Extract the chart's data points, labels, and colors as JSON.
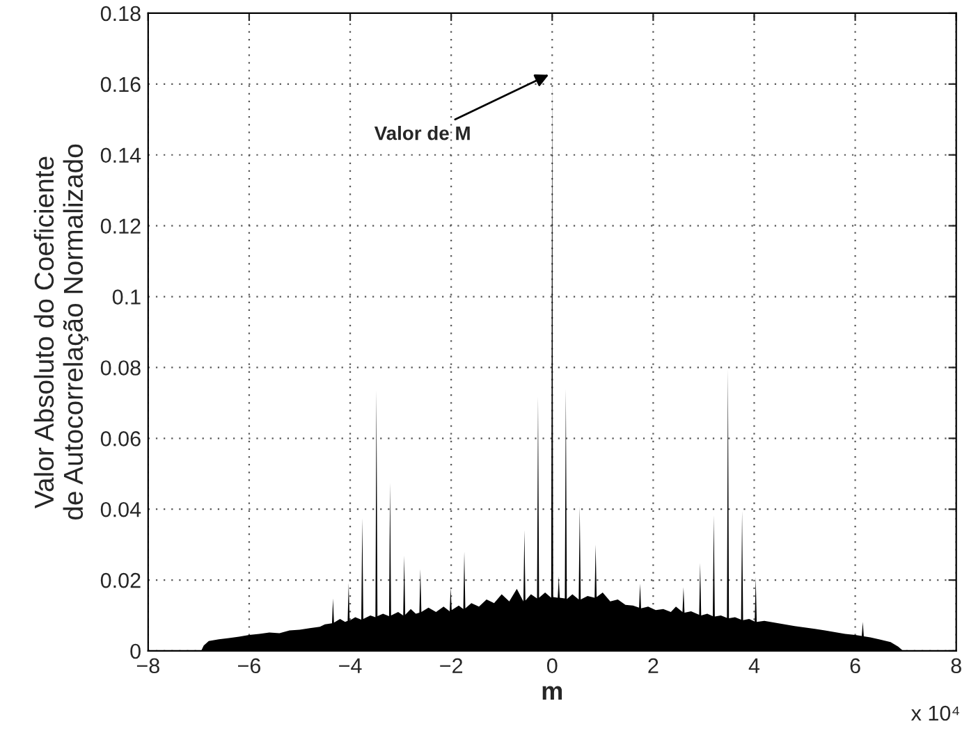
{
  "chart_data": {
    "type": "area",
    "xlabel": "m",
    "ylabel": "Valor Absoluto do Coeficiente\nde Autocorrelação Normalizado",
    "x": [
      -6.95,
      -6.9,
      -6.8,
      -6.6,
      -6.4,
      -6.2,
      -6.0,
      -5.8,
      -5.6,
      -5.4,
      -5.2,
      -5.0,
      -4.8,
      -4.6,
      -4.5,
      -4.36,
      -4.34,
      -4.32,
      -4.2,
      -4.1,
      -4.05,
      -4.03,
      -4.01,
      -3.9,
      -3.78,
      -3.76,
      -3.74,
      -3.6,
      -3.5,
      -3.48,
      -3.46,
      -3.35,
      -3.23,
      -3.21,
      -3.19,
      -3.05,
      -2.95,
      -2.93,
      -2.91,
      -2.8,
      -2.7,
      -2.63,
      -2.61,
      -2.59,
      -2.45,
      -2.3,
      -2.15,
      -2.03,
      -2.01,
      -1.99,
      -1.85,
      -1.76,
      -1.74,
      -1.72,
      -1.6,
      -1.45,
      -1.3,
      -1.15,
      -1.0,
      -0.85,
      -0.7,
      -0.57,
      -0.55,
      -0.53,
      -0.42,
      -0.3,
      -0.28,
      -0.26,
      -0.14,
      -0.02,
      0,
      0.02,
      0.11,
      0.13,
      0.15,
      0.25,
      0.27,
      0.29,
      0.4,
      0.525,
      0.545,
      0.565,
      0.7,
      0.84,
      0.86,
      0.88,
      1.0,
      1.15,
      1.3,
      1.45,
      1.6,
      1.72,
      1.74,
      1.76,
      1.9,
      2.05,
      2.2,
      2.35,
      2.45,
      2.58,
      2.6,
      2.62,
      2.75,
      2.91,
      2.93,
      2.95,
      3.07,
      3.18,
      3.2,
      3.22,
      3.34,
      3.46,
      3.48,
      3.5,
      3.62,
      3.74,
      3.76,
      3.78,
      3.9,
      4.01,
      4.03,
      4.05,
      4.2,
      4.4,
      4.6,
      4.8,
      5.0,
      5.2,
      5.4,
      5.6,
      5.8,
      6.0,
      6.13,
      6.15,
      6.17,
      6.3,
      6.5,
      6.7,
      6.85,
      6.95
    ],
    "values": [
      0,
      0.0015,
      0.0028,
      0.0033,
      0.0036,
      0.004,
      0.0045,
      0.0048,
      0.0052,
      0.005,
      0.0058,
      0.006,
      0.0064,
      0.0068,
      0.0075,
      0.0078,
      0.0148,
      0.008,
      0.009,
      0.0082,
      0.0085,
      0.0192,
      0.0086,
      0.0095,
      0.0088,
      0.0375,
      0.009,
      0.01,
      0.0095,
      0.0735,
      0.0098,
      0.0105,
      0.0098,
      0.0475,
      0.01,
      0.011,
      0.01,
      0.0269,
      0.0102,
      0.0118,
      0.0105,
      0.0108,
      0.0231,
      0.011,
      0.0122,
      0.011,
      0.0125,
      0.0112,
      0.0179,
      0.0115,
      0.0128,
      0.0118,
      0.028,
      0.012,
      0.0135,
      0.0125,
      0.0145,
      0.0135,
      0.016,
      0.014,
      0.0175,
      0.014,
      0.0341,
      0.0142,
      0.016,
      0.0148,
      0.0718,
      0.015,
      0.0165,
      0.015,
      0.1631,
      0.0152,
      0.015,
      0.021,
      0.015,
      0.0148,
      0.074,
      0.0146,
      0.016,
      0.0145,
      0.0407,
      0.0145,
      0.0155,
      0.015,
      0.03,
      0.0152,
      0.0165,
      0.014,
      0.0145,
      0.013,
      0.0128,
      0.0122,
      0.019,
      0.012,
      0.0125,
      0.0115,
      0.0118,
      0.011,
      0.0125,
      0.011,
      0.018,
      0.0108,
      0.0112,
      0.0102,
      0.0248,
      0.01,
      0.0105,
      0.0098,
      0.0383,
      0.0097,
      0.01,
      0.0093,
      0.0795,
      0.0092,
      0.0095,
      0.0088,
      0.0395,
      0.0087,
      0.009,
      0.0083,
      0.0208,
      0.0082,
      0.0085,
      0.008,
      0.0075,
      0.007,
      0.0066,
      0.0062,
      0.0058,
      0.0053,
      0.0048,
      0.0045,
      0.0042,
      0.0082,
      0.0041,
      0.0038,
      0.0032,
      0.0025,
      0.0012,
      0
    ],
    "color": "#000000",
    "xlim": [
      -8,
      8
    ],
    "xticks": [
      {
        "value": -8,
        "label": "−8"
      },
      {
        "value": -6,
        "label": "−6"
      },
      {
        "value": -4,
        "label": "−4"
      },
      {
        "value": -2,
        "label": "−2"
      },
      0,
      2,
      4,
      6,
      8
    ],
    "ylim": [
      0,
      0.18
    ],
    "yticks": [
      0,
      0.02,
      0.04,
      0.06,
      0.08,
      0.1,
      0.12,
      0.14,
      0.16,
      0.18
    ],
    "grid": true,
    "annotations": [
      {
        "text": "Valor de M",
        "x": 0,
        "y": 0.1631
      },
      "x 10⁴"
    ]
  }
}
